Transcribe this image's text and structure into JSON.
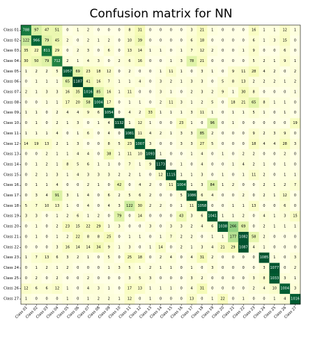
{
  "chart_data": {
    "type": "heatmap",
    "title": "Confusion matrix for NN",
    "xlabel": "",
    "ylabel": "",
    "row_labels": [
      "Class 01",
      "Class 02",
      "Class 03",
      "Class 04",
      "Class 05",
      "Class 06",
      "Class 07",
      "Class 08",
      "Class 09",
      "Class 10",
      "Class 11",
      "Class 12",
      "Class 13",
      "Class 14",
      "Class 15",
      "Class 16",
      "Class 17",
      "Class 18",
      "Class 19",
      "Class 20",
      "Class 21",
      "Class 22",
      "Class 23",
      "Class 24",
      "Class 25",
      "Class 26",
      "Class 27"
    ],
    "col_labels": [
      "Class 01",
      "Class 02",
      "Class 03",
      "Class 04",
      "Class 05",
      "Class 06",
      "Class 07",
      "Class 08",
      "Class 09",
      "Class 10",
      "Class 11",
      "Class 12",
      "Class 13",
      "Class 14",
      "Class 15",
      "Class 16",
      "Class 17",
      "Class 18",
      "Class 19",
      "Class 20",
      "Class 21",
      "Class 22",
      "Class 23",
      "Class 24",
      "Class 25",
      "Class 26",
      "Class 27"
    ],
    "values": [
      [
        788,
        97,
        47,
        51,
        0,
        1,
        2,
        0,
        0,
        0,
        8,
        31,
        0,
        0,
        0,
        0,
        3,
        21,
        1,
        0,
        0,
        0,
        16,
        1,
        1,
        12,
        1
      ],
      [
        122,
        966,
        79,
        45,
        2,
        0,
        2,
        1,
        2,
        0,
        10,
        39,
        0,
        0,
        0,
        0,
        6,
        18,
        0,
        0,
        0,
        0,
        6,
        1,
        3,
        15,
        0
      ],
      [
        35,
        22,
        811,
        29,
        0,
        2,
        3,
        0,
        6,
        0,
        13,
        14,
        1,
        1,
        0,
        1,
        7,
        12,
        2,
        0,
        0,
        1,
        9,
        0,
        0,
        6,
        0
      ],
      [
        30,
        50,
        79,
        712,
        2,
        1,
        4,
        3,
        0,
        2,
        6,
        16,
        0,
        0,
        1,
        3,
        78,
        21,
        0,
        0,
        0,
        0,
        5,
        2,
        1,
        9,
        1
      ],
      [
        1,
        2,
        2,
        5,
        1057,
        69,
        23,
        18,
        12,
        0,
        2,
        0,
        0,
        1,
        11,
        1,
        0,
        3,
        1,
        0,
        9,
        11,
        28,
        4,
        2,
        0,
        2
      ],
      [
        0,
        1,
        1,
        1,
        65,
        1187,
        41,
        16,
        7,
        1,
        1,
        4,
        0,
        3,
        2,
        1,
        3,
        3,
        0,
        5,
        8,
        13,
        2,
        2,
        2,
        1,
        2
      ],
      [
        2,
        1,
        3,
        3,
        16,
        35,
        1016,
        85,
        16,
        1,
        11,
        0,
        0,
        3,
        1,
        0,
        2,
        3,
        2,
        9,
        1,
        30,
        8,
        0,
        0,
        0,
        1
      ],
      [
        0,
        0,
        1,
        1,
        17,
        20,
        58,
        1004,
        17,
        0,
        1,
        1,
        0,
        2,
        11,
        3,
        1,
        2,
        5,
        0,
        18,
        21,
        65,
        8,
        1,
        1,
        0
      ],
      [
        1,
        1,
        0,
        2,
        4,
        4,
        9,
        6,
        1054,
        0,
        4,
        2,
        33,
        1,
        1,
        1,
        3,
        11,
        1,
        0,
        1,
        1,
        5,
        1,
        0,
        1,
        0
      ],
      [
        0,
        1,
        0,
        2,
        1,
        3,
        0,
        1,
        4,
        1132,
        1,
        12,
        1,
        0,
        0,
        23,
        1,
        0,
        96,
        0,
        1,
        0,
        0,
        0,
        0,
        0,
        19
      ],
      [
        1,
        1,
        1,
        4,
        0,
        1,
        6,
        0,
        4,
        0,
        1081,
        11,
        4,
        2,
        1,
        3,
        3,
        85,
        2,
        0,
        0,
        0,
        9,
        2,
        3,
        9,
        0
      ],
      [
        14,
        19,
        13,
        2,
        1,
        3,
        0,
        0,
        8,
        5,
        23,
        1007,
        3,
        0,
        0,
        3,
        3,
        27,
        5,
        0,
        0,
        0,
        18,
        4,
        4,
        28,
        3
      ],
      [
        0,
        0,
        2,
        1,
        1,
        4,
        4,
        0,
        38,
        1,
        11,
        10,
        1093,
        1,
        0,
        0,
        1,
        4,
        0,
        1,
        0,
        2,
        2,
        0,
        0,
        2,
        0
      ],
      [
        0,
        1,
        2,
        1,
        8,
        5,
        6,
        1,
        1,
        0,
        7,
        1,
        9,
        1173,
        0,
        1,
        0,
        4,
        0,
        0,
        1,
        4,
        2,
        1,
        0,
        1,
        0
      ],
      [
        0,
        2,
        1,
        3,
        1,
        4,
        3,
        3,
        3,
        2,
        2,
        1,
        0,
        12,
        1115,
        1,
        1,
        3,
        0,
        1,
        0,
        1,
        11,
        2,
        0,
        1,
        1
      ],
      [
        0,
        1,
        1,
        4,
        0,
        0,
        2,
        1,
        0,
        42,
        0,
        4,
        2,
        0,
        11,
        1004,
        1,
        3,
        84,
        1,
        2,
        0,
        0,
        2,
        1,
        2,
        7
      ],
      [
        0,
        3,
        4,
        91,
        3,
        1,
        4,
        0,
        6,
        2,
        5,
        6,
        2,
        0,
        0,
        5,
        1086,
        6,
        4,
        0,
        0,
        2,
        0,
        2,
        1,
        12,
        0
      ],
      [
        5,
        7,
        10,
        13,
        1,
        0,
        4,
        0,
        4,
        3,
        122,
        30,
        2,
        2,
        0,
        1,
        11,
        1058,
        0,
        0,
        1,
        1,
        13,
        0,
        0,
        6,
        0
      ],
      [
        3,
        3,
        0,
        1,
        2,
        6,
        1,
        2,
        0,
        79,
        0,
        14,
        0,
        0,
        0,
        43,
        3,
        6,
        1041,
        1,
        1,
        2,
        0,
        4,
        1,
        3,
        15
      ],
      [
        0,
        1,
        0,
        2,
        23,
        15,
        22,
        29,
        1,
        3,
        0,
        0,
        3,
        0,
        3,
        3,
        2,
        4,
        6,
        1038,
        266,
        69,
        0,
        2,
        1,
        1,
        1
      ],
      [
        0,
        1,
        0,
        1,
        2,
        22,
        8,
        8,
        25,
        0,
        1,
        1,
        0,
        1,
        7,
        2,
        2,
        0,
        1,
        1,
        177,
        1082,
        58,
        2,
        0,
        0,
        0
      ],
      [
        0,
        0,
        0,
        3,
        16,
        14,
        14,
        34,
        9,
        1,
        3,
        0,
        1,
        14,
        0,
        2,
        1,
        3,
        4,
        21,
        29,
        1087,
        4,
        1,
        0,
        0,
        0
      ],
      [
        1,
        7,
        13,
        6,
        3,
        2,
        1,
        0,
        5,
        0,
        25,
        18,
        0,
        2,
        4,
        0,
        4,
        31,
        2,
        0,
        0,
        0,
        0,
        1085,
        1,
        0,
        3
      ],
      [
        0,
        1,
        2,
        1,
        2,
        0,
        0,
        0,
        1,
        3,
        5,
        1,
        2,
        1,
        1,
        0,
        1,
        0,
        3,
        0,
        0,
        0,
        0,
        3,
        1077,
        0,
        2
      ],
      [
        0,
        2,
        0,
        2,
        0,
        0,
        2,
        0,
        0,
        0,
        3,
        5,
        3,
        0,
        0,
        0,
        3,
        2,
        0,
        0,
        0,
        0,
        3,
        8,
        1033,
        3,
        1
      ],
      [
        12,
        6,
        6,
        12,
        1,
        0,
        4,
        3,
        1,
        0,
        17,
        13,
        1,
        1,
        1,
        0,
        4,
        31,
        0,
        0,
        0,
        0,
        2,
        4,
        10,
        1004,
        3
      ],
      [
        1,
        0,
        0,
        0,
        1,
        0,
        1,
        2,
        2,
        1,
        12,
        0,
        1,
        0,
        0,
        0,
        13,
        0,
        1,
        22,
        0,
        1,
        0,
        0,
        1,
        4,
        1016
      ]
    ]
  }
}
